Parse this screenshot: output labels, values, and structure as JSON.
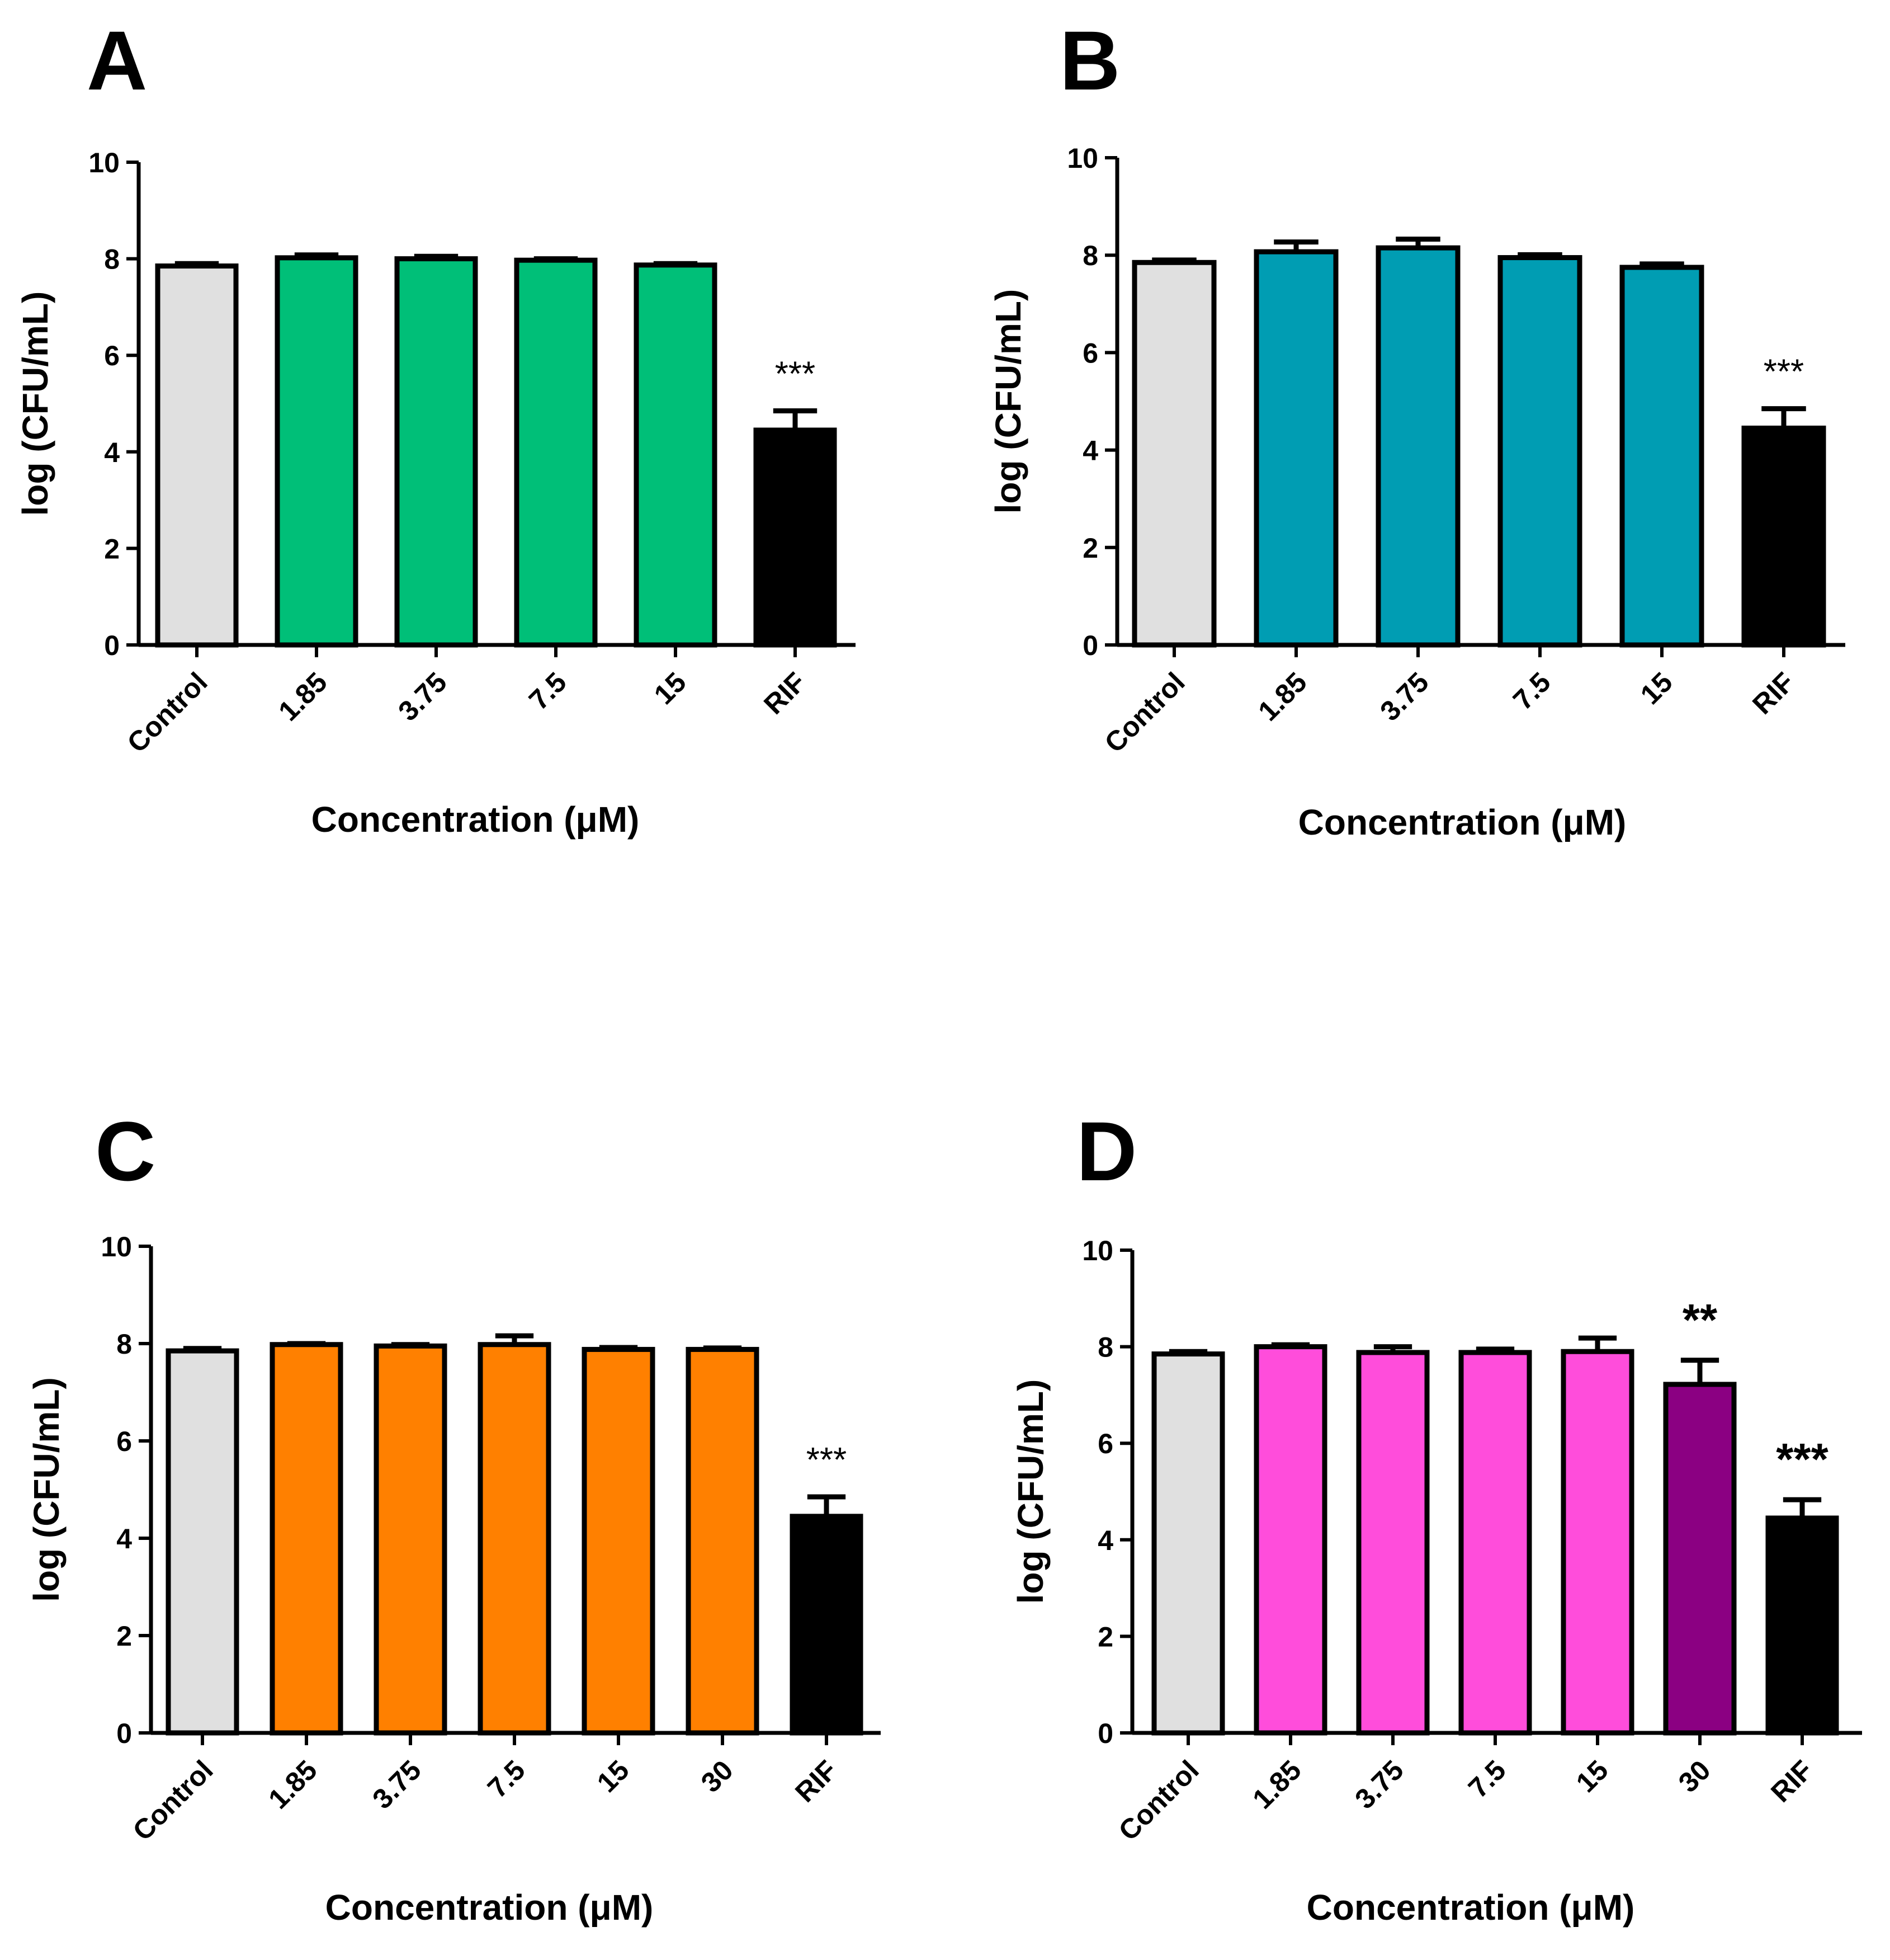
{
  "chart_data": [
    {
      "panel": "A",
      "type": "bar",
      "categories": [
        "Control",
        "1.85",
        "3.75",
        "7.5",
        "15",
        "RIF"
      ],
      "values": [
        7.85,
        8.02,
        8.0,
        7.97,
        7.87,
        4.45
      ],
      "errors": [
        0.05,
        0.06,
        0.05,
        0.03,
        0.03,
        0.4
      ],
      "colors": [
        "#e0e0e0",
        "#00bf78",
        "#00bf78",
        "#00bf78",
        "#00bf78",
        "#000000"
      ],
      "annotations": [
        "",
        "",
        "",
        "",
        "",
        "***"
      ],
      "xlabel": "Concentration (μM)",
      "ylabel": "log (CFU/mL)",
      "ylim": [
        0,
        10
      ],
      "yticks": [
        "0",
        "2",
        "4",
        "6",
        "8",
        "10"
      ],
      "grid": false
    },
    {
      "panel": "B",
      "type": "bar",
      "categories": [
        "Control",
        "1.85",
        "3.75",
        "7.5",
        "15",
        "RIF"
      ],
      "values": [
        7.85,
        8.07,
        8.15,
        7.95,
        7.75,
        4.45
      ],
      "errors": [
        0.05,
        0.2,
        0.18,
        0.06,
        0.07,
        0.4
      ],
      "colors": [
        "#e0e0e0",
        "#009db3",
        "#009db3",
        "#009db3",
        "#009db3",
        "#000000"
      ],
      "annotations": [
        "",
        "",
        "",
        "",
        "",
        "***"
      ],
      "xlabel": "Concentration (μM)",
      "ylabel": "log (CFU/mL)",
      "ylim": [
        0,
        10
      ],
      "yticks": [
        "0",
        "2",
        "4",
        "6",
        "8",
        "10"
      ],
      "grid": false
    },
    {
      "panel": "C",
      "type": "bar",
      "categories": [
        "Control",
        "1.85",
        "3.75",
        "7.5",
        "15",
        "30",
        "RIF"
      ],
      "values": [
        7.85,
        7.98,
        7.95,
        7.98,
        7.88,
        7.88,
        4.45
      ],
      "errors": [
        0.05,
        0.02,
        0.03,
        0.18,
        0.04,
        0.03,
        0.4
      ],
      "colors": [
        "#e0e0e0",
        "#ff8000",
        "#ff8000",
        "#ff8000",
        "#ff8000",
        "#ff8000",
        "#000000"
      ],
      "annotations": [
        "",
        "",
        "",
        "",
        "",
        "",
        "***"
      ],
      "xlabel": "Concentration (μM)",
      "ylabel": "log (CFU/mL)",
      "ylim": [
        0,
        10
      ],
      "yticks": [
        "0",
        "2",
        "4",
        "6",
        "8",
        "10"
      ],
      "grid": false
    },
    {
      "panel": "D",
      "type": "bar",
      "categories": [
        "Control",
        "1.85",
        "3.75",
        "7.5",
        "15",
        "30",
        "RIF"
      ],
      "values": [
        7.85,
        8.0,
        7.88,
        7.88,
        7.9,
        7.22,
        4.45
      ],
      "errors": [
        0.05,
        0.04,
        0.12,
        0.07,
        0.28,
        0.5,
        0.38
      ],
      "colors": [
        "#e0e0e0",
        "#ff4ddb",
        "#ff4ddb",
        "#ff4ddb",
        "#ff4ddb",
        "#8b0082",
        "#000000"
      ],
      "annotations": [
        "",
        "",
        "",
        "",
        "",
        "**",
        "***"
      ],
      "xlabel": "Concentration (μM)",
      "ylabel": "log (CFU/mL)",
      "ylim": [
        0,
        10
      ],
      "yticks": [
        "0",
        "2",
        "4",
        "6",
        "8",
        "10"
      ],
      "grid": false
    }
  ]
}
